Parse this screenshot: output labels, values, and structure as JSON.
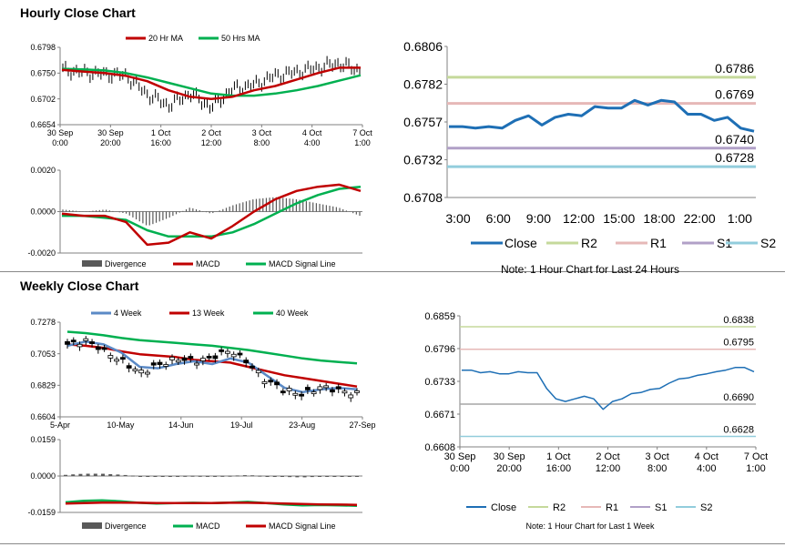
{
  "hourly_title": "Hourly Close Chart",
  "weekly_title": "Weekly Close Chart",
  "colors": {
    "close": "#1e6fb5",
    "r2": "#c5d99b",
    "r1": "#e6b8b7",
    "s1": "#b1a0c7",
    "s2": "#92cddc",
    "ma_red": "#c00000",
    "ma_green": "#00b050",
    "week4": "#5b8ac6",
    "bars": "#595959"
  },
  "chart_data": [
    {
      "id": "hourly_price",
      "type": "line",
      "legend": [
        {
          "name": "20 Hr MA",
          "color": "#c00000"
        },
        {
          "name": "50 Hrs MA",
          "color": "#00b050"
        }
      ],
      "xticks": [
        "30 Sep\n0:00",
        "30 Sep\n20:00",
        "1 Oct\n16:00",
        "2 Oct\n12:00",
        "3 Oct\n8:00",
        "4 Oct\n4:00",
        "7 Oct\n1:00"
      ],
      "yticks": [
        "0.6798",
        "0.6750",
        "0.6702",
        "0.6654"
      ],
      "ylim": [
        0.6654,
        0.6798
      ],
      "series": [
        {
          "name": "20 Hr MA",
          "values": [
            0.6756,
            0.6753,
            0.675,
            0.6745,
            0.6735,
            0.6718,
            0.6706,
            0.6702,
            0.6706,
            0.6718,
            0.6726,
            0.6738,
            0.675,
            0.676,
            0.676
          ]
        },
        {
          "name": "50 Hrs MA",
          "values": [
            0.6758,
            0.6757,
            0.6755,
            0.675,
            0.6742,
            0.6732,
            0.6722,
            0.6712,
            0.6708,
            0.6708,
            0.6712,
            0.6718,
            0.6726,
            0.6736,
            0.6746
          ]
        },
        {
          "name": "Close",
          "values": [
            0.6756,
            0.6751,
            0.6748,
            0.6745,
            0.671,
            0.669,
            0.6712,
            0.6686,
            0.672,
            0.6728,
            0.6745,
            0.6752,
            0.676,
            0.6768,
            0.6755
          ]
        }
      ]
    },
    {
      "id": "hourly_macd",
      "type": "line",
      "legend": [
        {
          "name": "Divergence",
          "color": "#595959"
        },
        {
          "name": "MACD",
          "color": "#c00000"
        },
        {
          "name": "MACD Signal Line",
          "color": "#00b050"
        }
      ],
      "yticks": [
        "0.0020",
        "0.0000",
        "-0.0020"
      ],
      "ylim": [
        -0.002,
        0.002
      ],
      "series": [
        {
          "name": "MACD",
          "values": [
            -0.0001,
            -0.0002,
            -0.0002,
            -0.0005,
            -0.0016,
            -0.0015,
            -0.001,
            -0.0013,
            -0.0007,
            0.0,
            0.0006,
            0.001,
            0.0012,
            0.0013,
            0.001
          ]
        },
        {
          "name": "MACD Signal Line",
          "values": [
            -0.0002,
            -0.0002,
            -0.0003,
            -0.0004,
            -0.0009,
            -0.0012,
            -0.0012,
            -0.0012,
            -0.001,
            -0.0006,
            -0.0001,
            0.0004,
            0.0008,
            0.0011,
            0.0012
          ]
        }
      ]
    },
    {
      "id": "hourly_levels",
      "type": "line",
      "xticks": [
        "3:00",
        "6:00",
        "9:00",
        "12:00",
        "15:00",
        "18:00",
        "22:00",
        "1:00"
      ],
      "yticks": [
        "0.6806",
        "0.6782",
        "0.6757",
        "0.6732",
        "0.6708"
      ],
      "ylim": [
        0.6708,
        0.6806
      ],
      "levels": [
        {
          "name": "R2",
          "value": 0.6786,
          "label": "0.6786"
        },
        {
          "name": "R1",
          "value": 0.6769,
          "label": "0.6769"
        },
        {
          "name": "S1",
          "value": 0.674,
          "label": "0.6740"
        },
        {
          "name": "S2",
          "value": 0.6728,
          "label": "0.6728"
        }
      ],
      "close": [
        0.6754,
        0.6754,
        0.6753,
        0.6754,
        0.6753,
        0.6758,
        0.6761,
        0.6755,
        0.676,
        0.6762,
        0.6761,
        0.6767,
        0.6766,
        0.6766,
        0.6771,
        0.6768,
        0.6771,
        0.677,
        0.6762,
        0.6762,
        0.6758,
        0.676,
        0.6753,
        0.6751
      ],
      "legend": [
        "Close",
        "R2",
        "R1",
        "S1",
        "S2"
      ],
      "note": "Note: 1 Hour Chart for Last 24 Hours"
    },
    {
      "id": "weekly_price",
      "type": "line",
      "legend": [
        {
          "name": "4 Week",
          "color": "#5b8ac6"
        },
        {
          "name": "13 Week",
          "color": "#c00000"
        },
        {
          "name": "40 Week",
          "color": "#00b050"
        }
      ],
      "xticks": [
        "5-Apr",
        "10-May",
        "14-Jun",
        "19-Jul",
        "23-Aug",
        "27-Sep"
      ],
      "yticks": [
        "0.7278",
        "0.7053",
        "0.6829",
        "0.6604"
      ],
      "ylim": [
        0.6604,
        0.7278
      ],
      "series": [
        {
          "name": "4 Week",
          "values": [
            0.711,
            0.714,
            0.712,
            0.706,
            0.696,
            0.695,
            0.698,
            0.7,
            0.698,
            0.702,
            0.699,
            0.69,
            0.681,
            0.678,
            0.68,
            0.681,
            0.68
          ]
        },
        {
          "name": "13 Week",
          "values": [
            0.712,
            0.711,
            0.7095,
            0.707,
            0.705,
            0.704,
            0.703,
            0.701,
            0.7,
            0.699,
            0.696,
            0.693,
            0.69,
            0.688,
            0.686,
            0.684,
            0.682
          ]
        },
        {
          "name": "40 Week",
          "values": [
            0.721,
            0.72,
            0.7185,
            0.7165,
            0.715,
            0.714,
            0.713,
            0.712,
            0.711,
            0.7095,
            0.708,
            0.706,
            0.704,
            0.702,
            0.7005,
            0.6995,
            0.6985
          ]
        },
        {
          "name": "Close",
          "values": [
            0.712,
            0.715,
            0.708,
            0.7,
            0.692,
            0.697,
            0.702,
            0.7,
            0.703,
            0.708,
            0.699,
            0.686,
            0.68,
            0.676,
            0.682,
            0.679,
            0.677
          ]
        }
      ]
    },
    {
      "id": "weekly_macd",
      "type": "line",
      "legend": [
        {
          "name": "Divergence",
          "color": "#595959"
        },
        {
          "name": "MACD",
          "color": "#00b050"
        },
        {
          "name": "MACD Signal Line",
          "color": "#c00000"
        }
      ],
      "yticks": [
        "0.0159",
        "0.0000",
        "-0.0159"
      ],
      "ylim": [
        -0.0159,
        0.0159
      ],
      "series": [
        {
          "name": "MACD",
          "values": [
            -0.0115,
            -0.0108,
            -0.0106,
            -0.011,
            -0.0117,
            -0.012,
            -0.0118,
            -0.0117,
            -0.0118,
            -0.0116,
            -0.0113,
            -0.0118,
            -0.0124,
            -0.0128,
            -0.0127,
            -0.0128,
            -0.013
          ]
        },
        {
          "name": "MACD Signal Line",
          "values": [
            -0.012,
            -0.0118,
            -0.0116,
            -0.0116,
            -0.0117,
            -0.0118,
            -0.0118,
            -0.0118,
            -0.0118,
            -0.0117,
            -0.0117,
            -0.0118,
            -0.012,
            -0.0122,
            -0.0124,
            -0.0125,
            -0.0126
          ]
        }
      ]
    },
    {
      "id": "weekly_levels",
      "type": "line",
      "xticks": [
        "30 Sep\n0:00",
        "30 Sep\n20:00",
        "1 Oct\n16:00",
        "2 Oct\n12:00",
        "3 Oct\n8:00",
        "4 Oct\n4:00",
        "7 Oct\n1:00"
      ],
      "yticks": [
        "0.6859",
        "0.6796",
        "0.6733",
        "0.6671",
        "0.6608"
      ],
      "ylim": [
        0.6608,
        0.6859
      ],
      "levels": [
        {
          "name": "R2",
          "value": 0.6838,
          "label": "0.6838"
        },
        {
          "name": "R1",
          "value": 0.6795,
          "label": "0.6795"
        },
        {
          "name": "S1",
          "value": 0.669,
          "label": "0.6690"
        },
        {
          "name": "S2",
          "value": 0.6628,
          "label": "0.6628"
        }
      ],
      "close": [
        0.6755,
        0.6755,
        0.675,
        0.6752,
        0.6748,
        0.6748,
        0.6752,
        0.675,
        0.675,
        0.672,
        0.67,
        0.6695,
        0.67,
        0.6705,
        0.67,
        0.668,
        0.6695,
        0.67,
        0.671,
        0.6712,
        0.6718,
        0.672,
        0.673,
        0.6738,
        0.674,
        0.6745,
        0.6748,
        0.6752,
        0.6755,
        0.676,
        0.676,
        0.6752
      ],
      "legend": [
        "Close",
        "R2",
        "R1",
        "S1",
        "S2"
      ],
      "note": "Note: 1 Hour Chart for Last 1 Week"
    }
  ]
}
